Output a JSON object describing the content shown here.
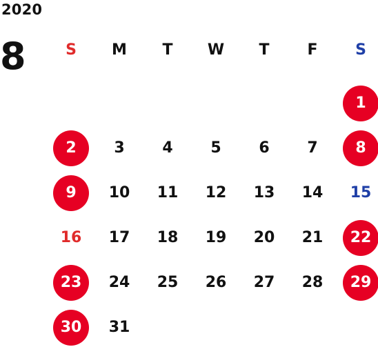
{
  "calendar": {
    "year": "2020",
    "month": "8",
    "weekdays": [
      "S",
      "M",
      "T",
      "W",
      "T",
      "F",
      "S"
    ],
    "weeks": [
      [
        null,
        null,
        null,
        null,
        null,
        null,
        "1"
      ],
      [
        "2",
        "3",
        "4",
        "5",
        "6",
        "7",
        "8"
      ],
      [
        "9",
        "10",
        "11",
        "12",
        "13",
        "14",
        "15"
      ],
      [
        "16",
        "17",
        "18",
        "19",
        "20",
        "21",
        "22"
      ],
      [
        "23",
        "24",
        "25",
        "26",
        "27",
        "28",
        "29"
      ],
      [
        "30",
        "31",
        null,
        null,
        null,
        null,
        null
      ]
    ],
    "holidays": [
      "1",
      "2",
      "8",
      "9",
      "22",
      "23",
      "29",
      "30"
    ]
  },
  "colors": {
    "holiday": "#e60023",
    "sunday": "#e02b2b",
    "saturday": "#1f3fa7",
    "text": "#111111",
    "background": "#ffffff"
  }
}
